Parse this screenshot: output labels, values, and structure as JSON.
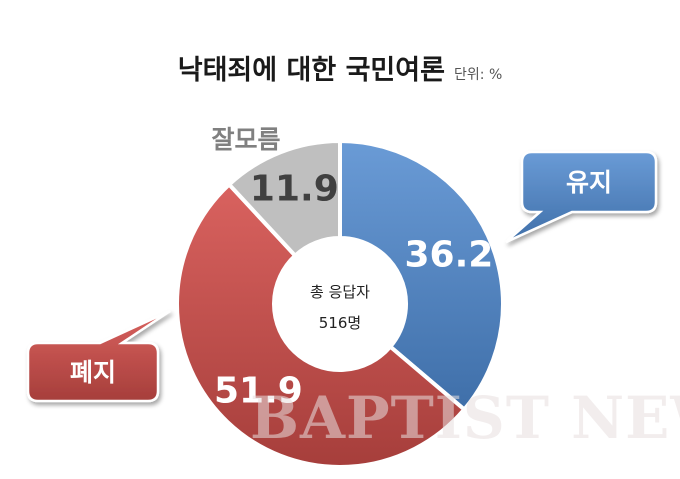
{
  "chart_data": {
    "type": "pie",
    "title": "낙태죄에 대한 국민여론",
    "unit_note": "단위: %",
    "center_line1": "총 응답자",
    "center_line2": "516명",
    "slices": [
      {
        "name": "유지",
        "value": 36.2,
        "label": "36.2",
        "color": "#4f81bd",
        "label_color": "#ffffff"
      },
      {
        "name": "폐지",
        "value": 51.9,
        "label": "51.9",
        "color": "#c0504d",
        "label_color": "#ffffff"
      },
      {
        "name": "잘모름",
        "value": 11.9,
        "label": "11.9",
        "color": "#bfbfbf",
        "label_color": "#404040"
      }
    ]
  },
  "watermark": "BAPTIST NEWS",
  "colors": {
    "callout_blue": "#4f81bd",
    "callout_red": "#c0504d",
    "muted_label": "#808080"
  }
}
